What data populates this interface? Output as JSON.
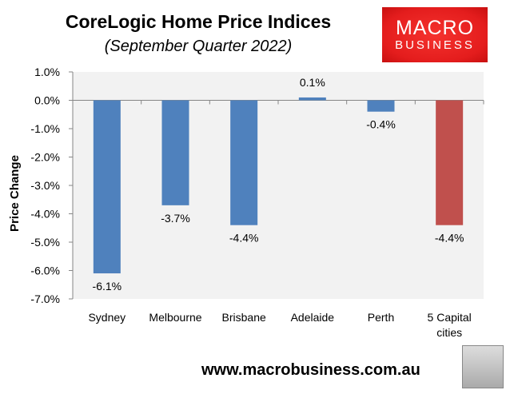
{
  "chart_data": {
    "type": "bar",
    "title": "CoreLogic Home Price Indices",
    "subtitle": "(September Quarter 2022)",
    "ylabel": "Price Change",
    "xlabel": "",
    "categories": [
      [
        "Sydney"
      ],
      [
        "Melbourne"
      ],
      [
        "Brisbane"
      ],
      [
        "Adelaide"
      ],
      [
        "Perth"
      ],
      [
        "5 Capital",
        "cities"
      ]
    ],
    "values": [
      -6.1,
      -3.7,
      -4.4,
      0.1,
      -0.4,
      -4.4
    ],
    "data_labels": [
      "-6.1%",
      "-3.7%",
      "-4.4%",
      "0.1%",
      "-0.4%",
      "-4.4%"
    ],
    "bar_colors": [
      "#4f81bd",
      "#4f81bd",
      "#4f81bd",
      "#4f81bd",
      "#4f81bd",
      "#c0504d"
    ],
    "ylim": [
      -7,
      1
    ],
    "yticks": [
      1,
      0,
      -1,
      -2,
      -3,
      -4,
      -5,
      -6,
      -7
    ],
    "ytick_labels": [
      "1.0%",
      "0.0%",
      "-1.0%",
      "-2.0%",
      "-3.0%",
      "-4.0%",
      "-5.0%",
      "-6.0%",
      "-7.0%"
    ],
    "plot_background": "#f2f2f2",
    "grid": false,
    "legend": "none"
  },
  "logo": {
    "line1": "MACRO",
    "line2": "BUSINESS"
  },
  "footer_url": "www.macrobusiness.com.au"
}
